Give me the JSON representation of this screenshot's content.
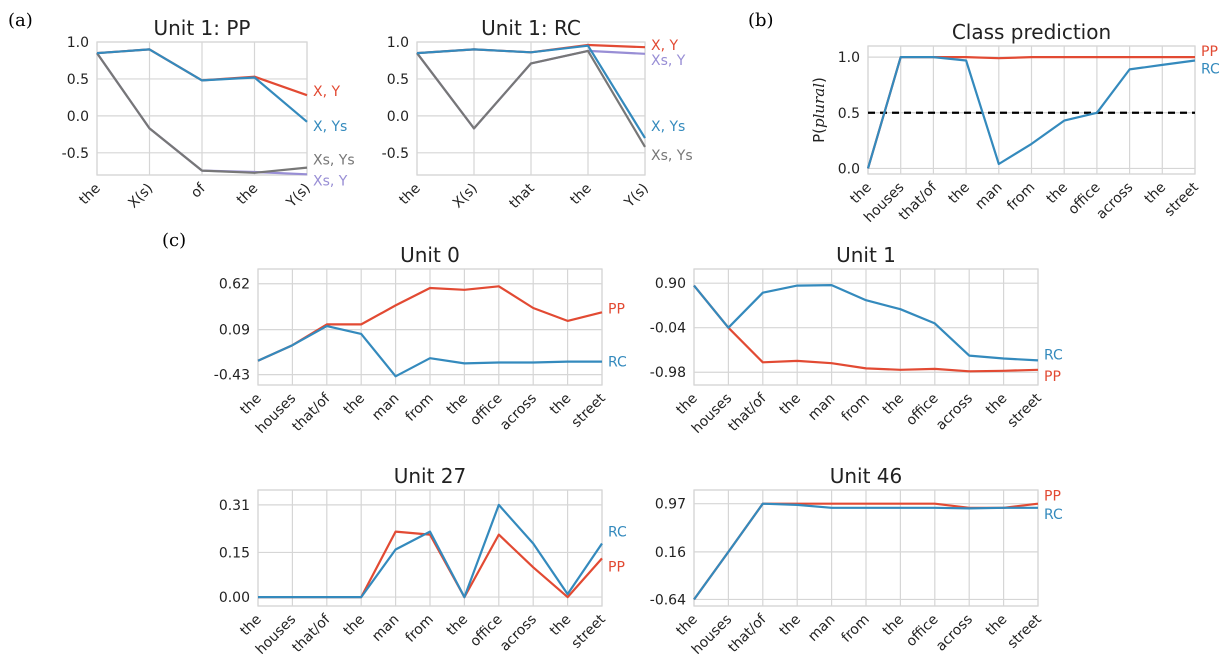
{
  "panel_labels": [
    "(a)",
    "(b)",
    "(c)"
  ],
  "colors": {
    "red": "#e24a33",
    "blue": "#348abd",
    "gray": "#777777",
    "purple": "#988ed5",
    "dashed": "#000000"
  },
  "chart_data": [
    {
      "id": "a1",
      "type": "line",
      "title": "Unit 1: PP",
      "categories": [
        "the",
        "X(s)",
        "of",
        "the",
        "Y(s)"
      ],
      "yticks": [
        1.0,
        0.5,
        0.0,
        -0.5
      ],
      "ytick_labels": [
        "1.0",
        "0.5",
        "0.0",
        "-0.5"
      ],
      "ylim": [
        -0.8,
        1.0
      ],
      "grid": true,
      "series": [
        {
          "name": "X, Y",
          "color": "#e24a33",
          "values": [
            0.85,
            0.9,
            0.48,
            0.53,
            0.28
          ]
        },
        {
          "name": "Xs, Y",
          "color": "#988ed5",
          "values": [
            0.85,
            -0.17,
            -0.74,
            -0.76,
            -0.79
          ]
        },
        {
          "name": "Xs, Ys",
          "color": "#777777",
          "values": [
            0.85,
            -0.17,
            -0.74,
            -0.77,
            -0.7
          ]
        },
        {
          "name": "X, Ys",
          "color": "#348abd",
          "values": [
            0.85,
            0.9,
            0.48,
            0.52,
            -0.08
          ]
        }
      ]
    },
    {
      "id": "a2",
      "type": "line",
      "title": "Unit 1: RC",
      "categories": [
        "the",
        "X(s)",
        "that",
        "the",
        "Y(s)"
      ],
      "yticks": [
        1.0,
        0.5,
        0.0,
        -0.5
      ],
      "ytick_labels": [
        "1.0",
        "0.5",
        "0.0",
        "-0.5"
      ],
      "ylim": [
        -0.8,
        1.0
      ],
      "grid": true,
      "series": [
        {
          "name": "X, Y",
          "color": "#e24a33",
          "values": [
            0.85,
            0.9,
            0.86,
            0.96,
            0.93
          ]
        },
        {
          "name": "Xs, Y",
          "color": "#988ed5",
          "values": [
            0.85,
            -0.17,
            0.71,
            0.88,
            0.84
          ]
        },
        {
          "name": "Xs, Ys",
          "color": "#777777",
          "values": [
            0.85,
            -0.17,
            0.71,
            0.88,
            -0.42
          ]
        },
        {
          "name": "X, Ys",
          "color": "#348abd",
          "values": [
            0.85,
            0.9,
            0.86,
            0.95,
            -0.3
          ]
        }
      ]
    },
    {
      "id": "b",
      "type": "line",
      "title": "Class prediction",
      "ylabel": "P(plural)",
      "categories": [
        "the",
        "houses",
        "that/of",
        "the",
        "man",
        "from",
        "the",
        "office",
        "across",
        "the",
        "street"
      ],
      "yticks": [
        1.0,
        0.5,
        0.0
      ],
      "ytick_labels": [
        "1.0",
        "0.5",
        "0.0"
      ],
      "ylim": [
        -0.05,
        1.1
      ],
      "grid": true,
      "hline": {
        "value": 0.5,
        "style": "dashed"
      },
      "series": [
        {
          "name": "PP",
          "color": "#e24a33",
          "values": [
            0.0,
            1.0,
            1.0,
            1.0,
            0.99,
            1.0,
            1.0,
            1.0,
            1.0,
            1.0,
            1.0
          ]
        },
        {
          "name": "RC",
          "color": "#348abd",
          "values": [
            0.0,
            1.0,
            1.0,
            0.97,
            0.04,
            0.22,
            0.43,
            0.5,
            0.89,
            0.93,
            0.97
          ]
        }
      ]
    },
    {
      "id": "c0",
      "type": "line",
      "title": "Unit 0",
      "categories": [
        "the",
        "houses",
        "that/of",
        "the",
        "man",
        "from",
        "the",
        "office",
        "across",
        "the",
        "street"
      ],
      "yticks": [
        0.62,
        0.09,
        -0.43
      ],
      "ytick_labels": [
        "0.62",
        "0.09",
        "-0.43"
      ],
      "ylim": [
        -0.55,
        0.79
      ],
      "grid": true,
      "series": [
        {
          "name": "PP",
          "color": "#e24a33",
          "values": [
            -0.27,
            -0.09,
            0.15,
            0.15,
            0.37,
            0.57,
            0.55,
            0.59,
            0.34,
            0.19,
            0.29
          ]
        },
        {
          "name": "RC",
          "color": "#348abd",
          "values": [
            -0.27,
            -0.09,
            0.13,
            0.04,
            -0.45,
            -0.24,
            -0.3,
            -0.29,
            -0.29,
            -0.28,
            -0.28
          ]
        }
      ]
    },
    {
      "id": "c1",
      "type": "line",
      "title": "Unit 1",
      "categories": [
        "the",
        "houses",
        "that/of",
        "the",
        "man",
        "from",
        "the",
        "office",
        "across",
        "the",
        "street"
      ],
      "yticks": [
        0.9,
        -0.04,
        -0.98
      ],
      "ytick_labels": [
        "0.90",
        "-0.04",
        "-0.98"
      ],
      "ylim": [
        -1.25,
        1.2
      ],
      "grid": true,
      "series": [
        {
          "name": "PP",
          "color": "#e24a33",
          "values": [
            0.85,
            -0.04,
            -0.77,
            -0.74,
            -0.79,
            -0.9,
            -0.93,
            -0.91,
            -0.96,
            -0.95,
            -0.93
          ]
        },
        {
          "name": "RC",
          "color": "#348abd",
          "values": [
            0.85,
            -0.04,
            0.7,
            0.85,
            0.86,
            0.54,
            0.35,
            0.05,
            -0.63,
            -0.69,
            -0.73
          ]
        }
      ]
    },
    {
      "id": "c27",
      "type": "line",
      "title": "Unit 27",
      "categories": [
        "the",
        "houses",
        "that/of",
        "the",
        "man",
        "from",
        "the",
        "office",
        "across",
        "the",
        "street"
      ],
      "yticks": [
        0.31,
        0.15,
        0.0
      ],
      "ytick_labels": [
        "0.31",
        "0.15",
        "0.00"
      ],
      "ylim": [
        -0.03,
        0.36
      ],
      "grid": true,
      "series": [
        {
          "name": "PP",
          "color": "#e24a33",
          "values": [
            0.0,
            0.0,
            0.0,
            0.0,
            0.22,
            0.21,
            0.0,
            0.21,
            0.1,
            0.0,
            0.13
          ]
        },
        {
          "name": "RC",
          "color": "#348abd",
          "values": [
            0.0,
            0.0,
            0.0,
            0.0,
            0.16,
            0.22,
            0.0,
            0.31,
            0.18,
            0.01,
            0.18
          ]
        }
      ]
    },
    {
      "id": "c46",
      "type": "line",
      "title": "Unit 46",
      "categories": [
        "the",
        "houses",
        "that/of",
        "the",
        "man",
        "from",
        "the",
        "office",
        "across",
        "the",
        "street"
      ],
      "yticks": [
        0.97,
        0.16,
        -0.64
      ],
      "ytick_labels": [
        "0.97",
        "0.16",
        "-0.64"
      ],
      "ylim": [
        -0.75,
        1.2
      ],
      "grid": true,
      "series": [
        {
          "name": "PP",
          "color": "#e24a33",
          "values": [
            -0.64,
            0.16,
            0.97,
            0.97,
            0.97,
            0.97,
            0.97,
            0.97,
            0.9,
            0.9,
            0.97
          ]
        },
        {
          "name": "RC",
          "color": "#348abd",
          "values": [
            -0.64,
            0.16,
            0.97,
            0.95,
            0.9,
            0.9,
            0.9,
            0.9,
            0.89,
            0.9,
            0.9
          ]
        }
      ]
    }
  ]
}
